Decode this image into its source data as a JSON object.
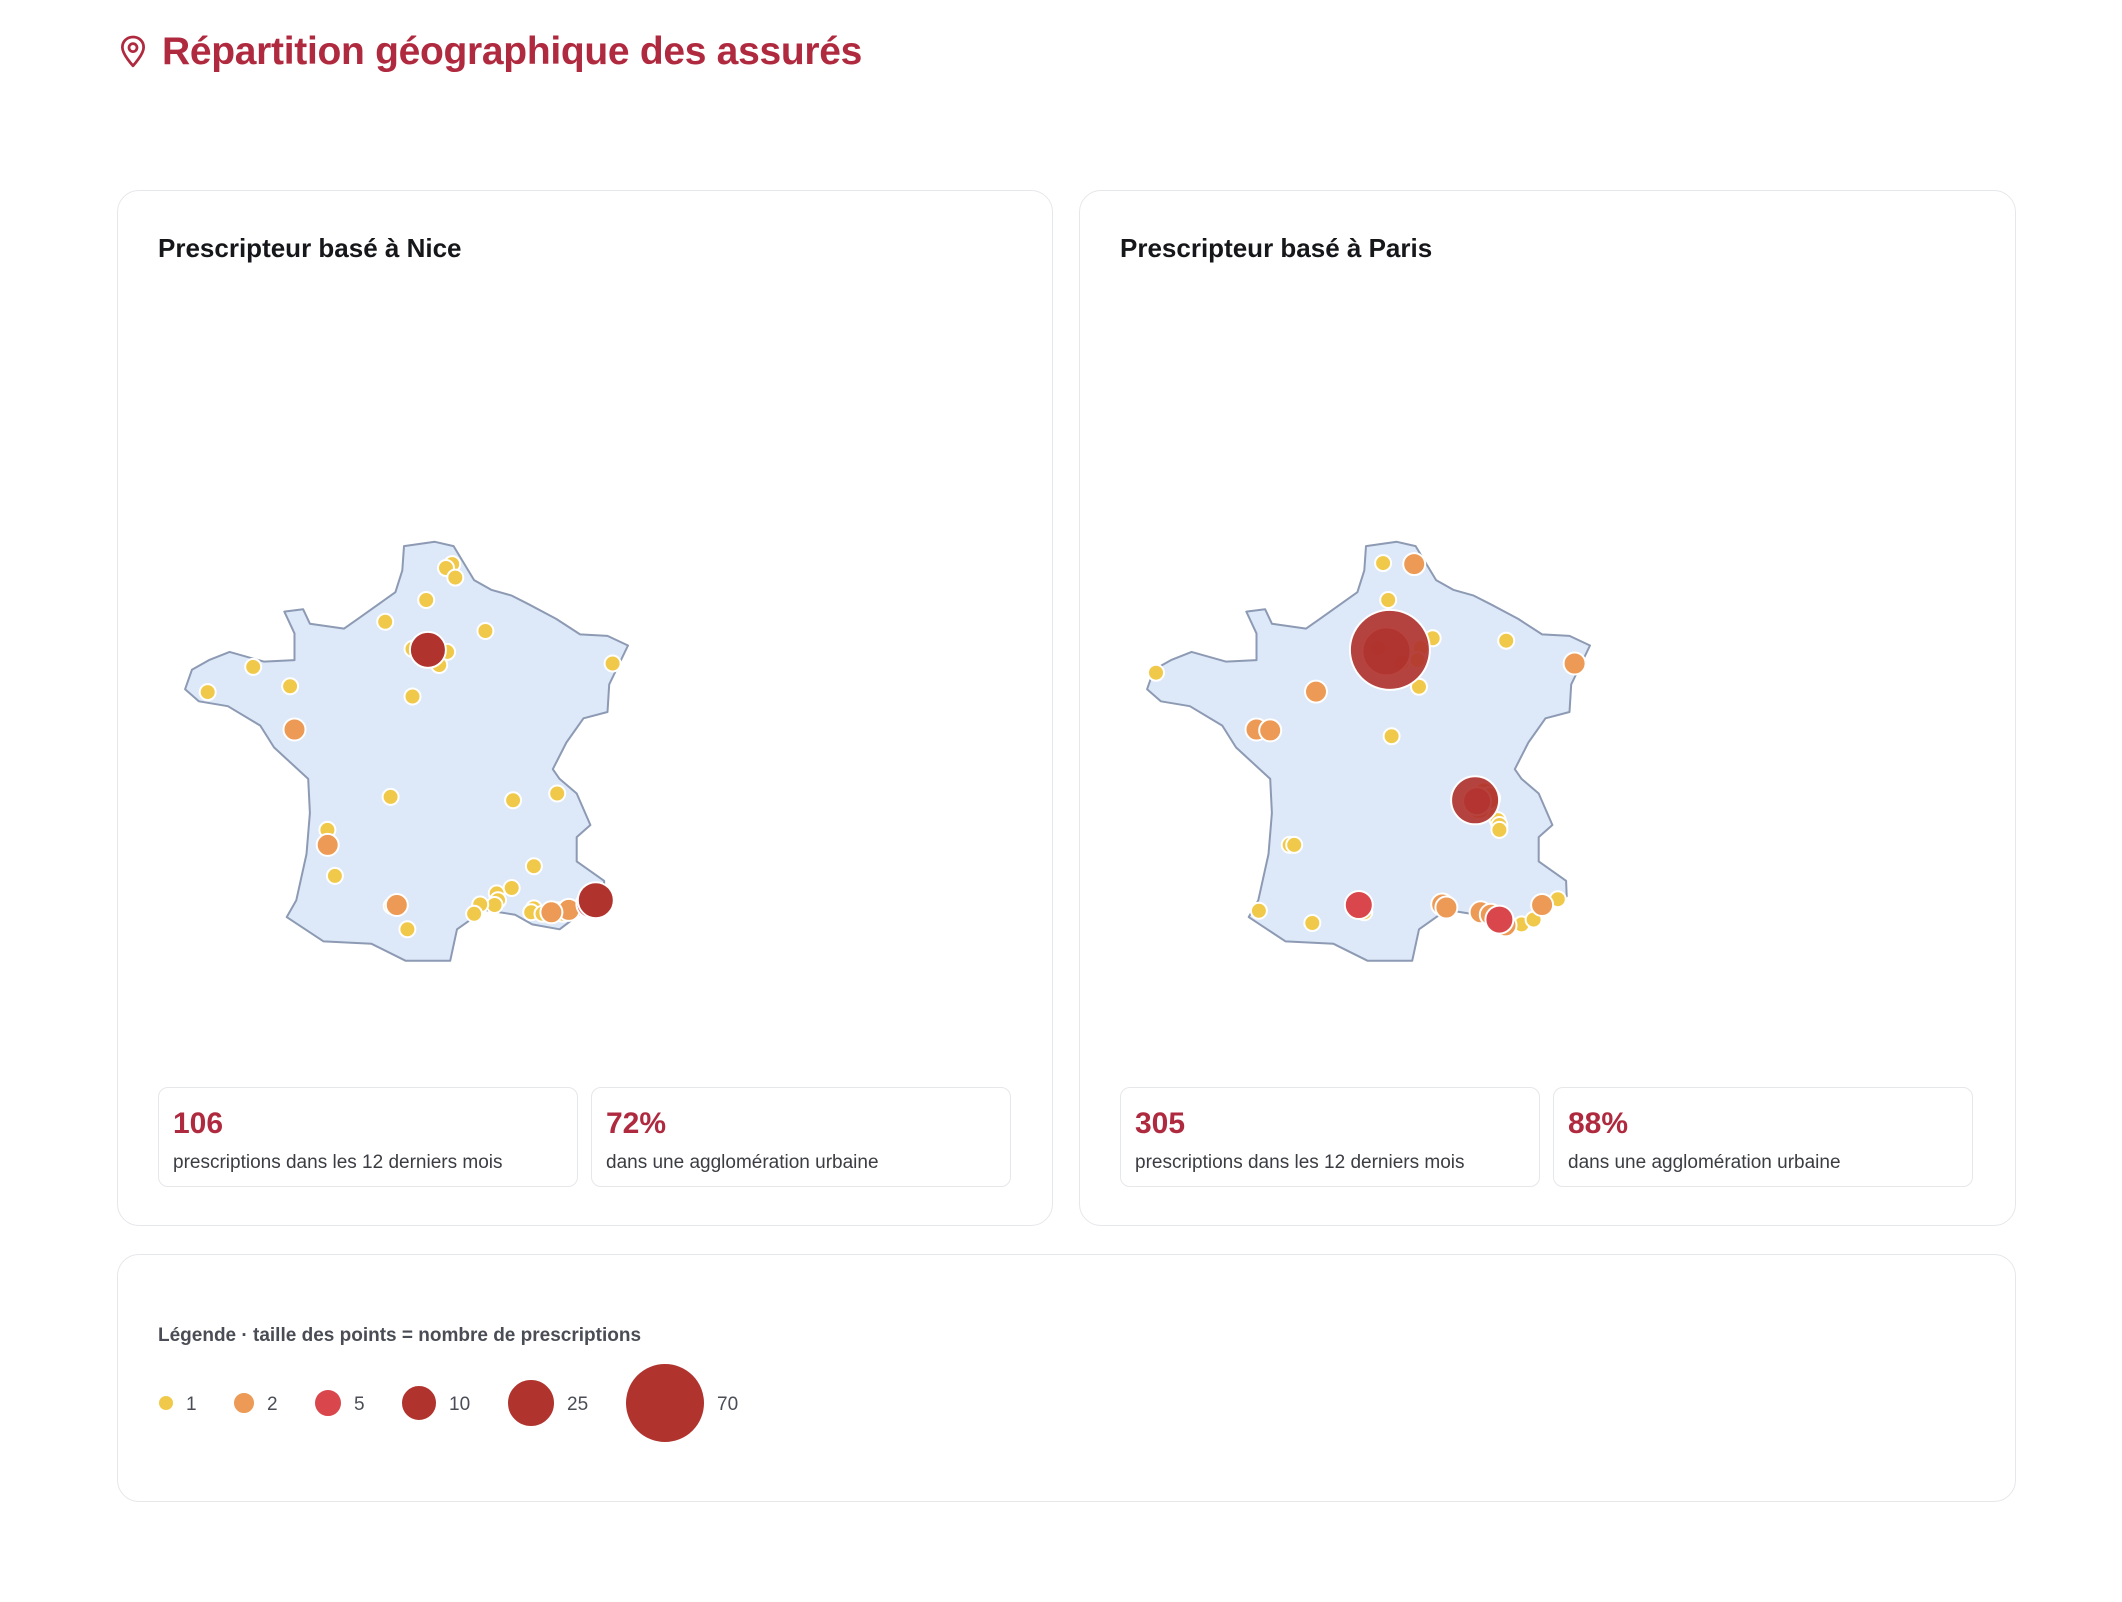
{
  "page": {
    "title": "Répartition géographique des assurés",
    "accent": "#b02a3f"
  },
  "icons": {
    "title_icon": "map-pin-icon"
  },
  "cards": [
    {
      "title": "Prescripteur basé à Nice",
      "stats": [
        {
          "value": "106",
          "label": "prescriptions dans les 12 derniers mois"
        },
        {
          "value": "72%",
          "label": "dans une agglomération urbaine"
        }
      ]
    },
    {
      "title": "Prescripteur basé à Paris",
      "stats": [
        {
          "value": "305",
          "label": "prescriptions dans les 12 derniers mois"
        },
        {
          "value": "88%",
          "label": "dans une agglomération urbaine"
        }
      ]
    }
  ],
  "legend": {
    "title": "Légende · taille des points = nombre de prescriptions",
    "items": [
      {
        "value": 1,
        "label": "1",
        "color": "#f1c94a"
      },
      {
        "value": 2,
        "label": "2",
        "color": "#ec9a55"
      },
      {
        "value": 5,
        "label": "5",
        "color": "#d9474c"
      },
      {
        "value": 10,
        "label": "10",
        "color": "#b0332e"
      },
      {
        "value": 25,
        "label": "25",
        "color": "#b0332e"
      },
      {
        "value": 70,
        "label": "70",
        "color": "#b0332e"
      }
    ]
  },
  "map_style": {
    "land": "#dde8f8",
    "border": "#8d9ab3"
  },
  "map_points": {
    "nice": [
      {
        "lon": 2.35,
        "lat": 48.86,
        "n": 10
      },
      {
        "lon": 7.26,
        "lat": 43.7,
        "n": 10
      },
      {
        "lon": 7.1,
        "lat": 43.62,
        "n": 5
      },
      {
        "lon": 6.47,
        "lat": 43.5,
        "n": 2
      },
      {
        "lon": 5.96,
        "lat": 43.45,
        "n": 2
      },
      {
        "lon": -1.55,
        "lat": 47.22,
        "n": 2
      },
      {
        "lon": -0.58,
        "lat": 44.84,
        "n": 2
      },
      {
        "lon": 1.44,
        "lat": 43.6,
        "n": 2
      },
      {
        "lon": 3.06,
        "lat": 50.63,
        "n": 1
      },
      {
        "lon": 2.88,
        "lat": 50.55,
        "n": 1
      },
      {
        "lon": 2.3,
        "lat": 49.89,
        "n": 1
      },
      {
        "lon": 3.15,
        "lat": 50.35,
        "n": 1
      },
      {
        "lon": 4.03,
        "lat": 49.25,
        "n": 1
      },
      {
        "lon": 7.75,
        "lat": 48.58,
        "n": 1
      },
      {
        "lon": 1.1,
        "lat": 49.44,
        "n": 1
      },
      {
        "lon": 1.9,
        "lat": 48.88,
        "n": 1
      },
      {
        "lon": 2.2,
        "lat": 48.95,
        "n": 1
      },
      {
        "lon": 2.48,
        "lat": 48.8,
        "n": 1
      },
      {
        "lon": 2.4,
        "lat": 48.75,
        "n": 1
      },
      {
        "lon": 2.6,
        "lat": 48.7,
        "n": 1
      },
      {
        "lon": 2.91,
        "lat": 48.82,
        "n": 1
      },
      {
        "lon": 2.68,
        "lat": 48.55,
        "n": 1
      },
      {
        "lon": -1.68,
        "lat": 48.11,
        "n": 1
      },
      {
        "lon": -2.76,
        "lat": 48.51,
        "n": 1
      },
      {
        "lon": -4.09,
        "lat": 47.99,
        "n": 1
      },
      {
        "lon": 1.9,
        "lat": 47.9,
        "n": 1
      },
      {
        "lon": 4.84,
        "lat": 45.76,
        "n": 1
      },
      {
        "lon": 6.13,
        "lat": 45.9,
        "n": 1
      },
      {
        "lon": 1.26,
        "lat": 45.83,
        "n": 1
      },
      {
        "lon": -0.59,
        "lat": 45.15,
        "n": 1
      },
      {
        "lon": -0.37,
        "lat": 44.2,
        "n": 1
      },
      {
        "lon": 1.29,
        "lat": 43.58,
        "n": 1
      },
      {
        "lon": 1.75,
        "lat": 43.1,
        "n": 1
      },
      {
        "lon": 5.45,
        "lat": 44.4,
        "n": 1
      },
      {
        "lon": 4.8,
        "lat": 43.95,
        "n": 1
      },
      {
        "lon": 4.36,
        "lat": 43.84,
        "n": 1
      },
      {
        "lon": 4.4,
        "lat": 43.7,
        "n": 1
      },
      {
        "lon": 4.3,
        "lat": 43.6,
        "n": 1
      },
      {
        "lon": 3.88,
        "lat": 43.61,
        "n": 1
      },
      {
        "lon": 3.7,
        "lat": 43.42,
        "n": 1
      },
      {
        "lon": 5.45,
        "lat": 43.53,
        "n": 1
      },
      {
        "lon": 5.37,
        "lat": 43.45,
        "n": 1
      },
      {
        "lon": 5.7,
        "lat": 43.42,
        "n": 1
      },
      {
        "lon": 6.15,
        "lat": 43.49,
        "n": 1
      },
      {
        "lon": 6.3,
        "lat": 43.42,
        "n": 1
      },
      {
        "lon": 6.92,
        "lat": 43.66,
        "n": 1
      }
    ],
    "paris": [
      {
        "lon": 2.35,
        "lat": 48.86,
        "n": 70
      },
      {
        "lon": 2.25,
        "lat": 48.83,
        "n": 25
      },
      {
        "lon": 4.84,
        "lat": 45.76,
        "n": 25
      },
      {
        "lon": 4.9,
        "lat": 45.74,
        "n": 5
      },
      {
        "lon": 1.44,
        "lat": 43.6,
        "n": 5
      },
      {
        "lon": 5.55,
        "lat": 43.3,
        "n": 5
      },
      {
        "lon": 3.06,
        "lat": 50.63,
        "n": 2
      },
      {
        "lon": 7.75,
        "lat": 48.58,
        "n": 2
      },
      {
        "lon": 0.19,
        "lat": 48.0,
        "n": 2
      },
      {
        "lon": -1.55,
        "lat": 47.22,
        "n": 2
      },
      {
        "lon": -1.15,
        "lat": 47.2,
        "n": 2
      },
      {
        "lon": 5.1,
        "lat": 45.9,
        "n": 2
      },
      {
        "lon": 5.25,
        "lat": 45.8,
        "n": 2
      },
      {
        "lon": 4.95,
        "lat": 45.6,
        "n": 2
      },
      {
        "lon": 3.88,
        "lat": 43.61,
        "n": 2
      },
      {
        "lon": 4.0,
        "lat": 43.55,
        "n": 2
      },
      {
        "lon": 5.0,
        "lat": 43.45,
        "n": 2
      },
      {
        "lon": 5.3,
        "lat": 43.4,
        "n": 2
      },
      {
        "lon": 5.73,
        "lat": 43.18,
        "n": 2
      },
      {
        "lon": 6.8,
        "lat": 43.6,
        "n": 2
      },
      {
        "lon": 2.15,
        "lat": 50.65,
        "n": 1
      },
      {
        "lon": 2.3,
        "lat": 49.89,
        "n": 1
      },
      {
        "lon": 3.25,
        "lat": 48.9,
        "n": 1
      },
      {
        "lon": 3.6,
        "lat": 49.1,
        "n": 1
      },
      {
        "lon": 5.75,
        "lat": 49.05,
        "n": 1
      },
      {
        "lon": 2.0,
        "lat": 48.9,
        "n": 1
      },
      {
        "lon": 2.7,
        "lat": 48.6,
        "n": 1
      },
      {
        "lon": 3.16,
        "lat": 48.65,
        "n": 1
      },
      {
        "lon": 3.2,
        "lat": 48.1,
        "n": 1
      },
      {
        "lon": 2.4,
        "lat": 47.08,
        "n": 1
      },
      {
        "lon": -4.49,
        "lat": 48.39,
        "n": 1
      },
      {
        "lon": 5.2,
        "lat": 45.55,
        "n": 1
      },
      {
        "lon": 5.5,
        "lat": 45.35,
        "n": 1
      },
      {
        "lon": 5.55,
        "lat": 45.25,
        "n": 1
      },
      {
        "lon": 5.55,
        "lat": 45.15,
        "n": 1
      },
      {
        "lon": -0.58,
        "lat": 44.84,
        "n": 1
      },
      {
        "lon": -0.45,
        "lat": 44.84,
        "n": 1
      },
      {
        "lon": -1.48,
        "lat": 43.48,
        "n": 1
      },
      {
        "lon": 0.08,
        "lat": 43.23,
        "n": 1
      },
      {
        "lon": 1.6,
        "lat": 43.45,
        "n": 1
      },
      {
        "lon": 5.65,
        "lat": 43.2,
        "n": 1
      },
      {
        "lon": 6.2,
        "lat": 43.2,
        "n": 1
      },
      {
        "lon": 6.55,
        "lat": 43.3,
        "n": 1
      },
      {
        "lon": 7.26,
        "lat": 43.72,
        "n": 1
      }
    ]
  }
}
